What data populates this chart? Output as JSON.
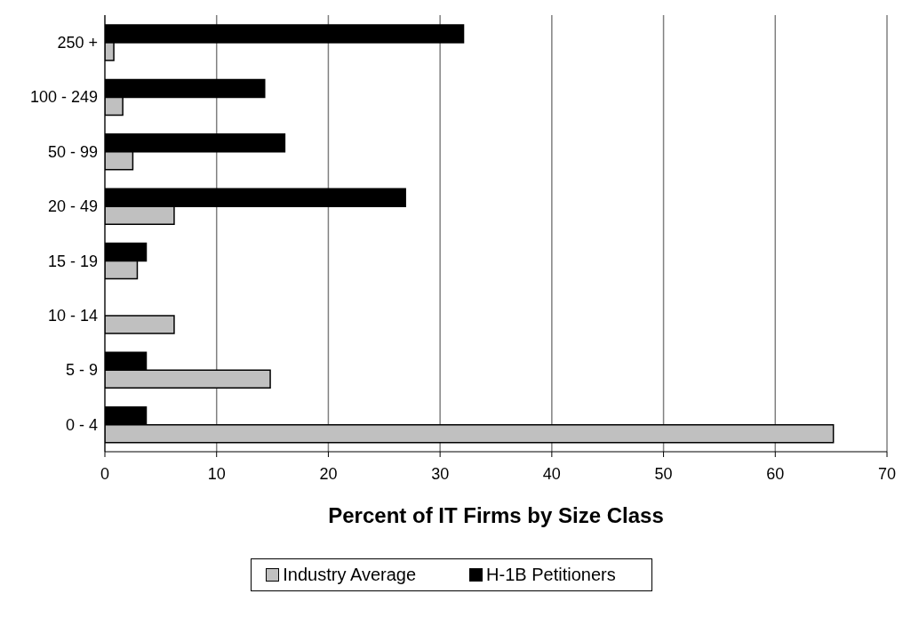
{
  "chart_data": {
    "type": "bar",
    "orientation": "horizontal",
    "xlabel": "Percent of IT Firms by Size Class",
    "categories": [
      "250 +",
      "100 - 249",
      "50 - 99",
      "20 - 49",
      "15 - 19",
      "10 - 14",
      "5 - 9",
      "0 - 4"
    ],
    "series": [
      {
        "name": "Industry Average",
        "color": "#c0c0c0",
        "values": [
          0.8,
          1.6,
          2.5,
          6.2,
          2.9,
          6.2,
          14.8,
          65.2
        ]
      },
      {
        "name": "H-1B Petitioners",
        "color": "#000000",
        "values": [
          32.1,
          14.3,
          16.1,
          26.9,
          3.7,
          0,
          3.7,
          3.7
        ]
      }
    ],
    "xlim": [
      0,
      70
    ],
    "xticks": [
      0,
      10,
      20,
      30,
      40,
      50,
      60,
      70
    ],
    "grid": "x",
    "legend": "bottom"
  }
}
